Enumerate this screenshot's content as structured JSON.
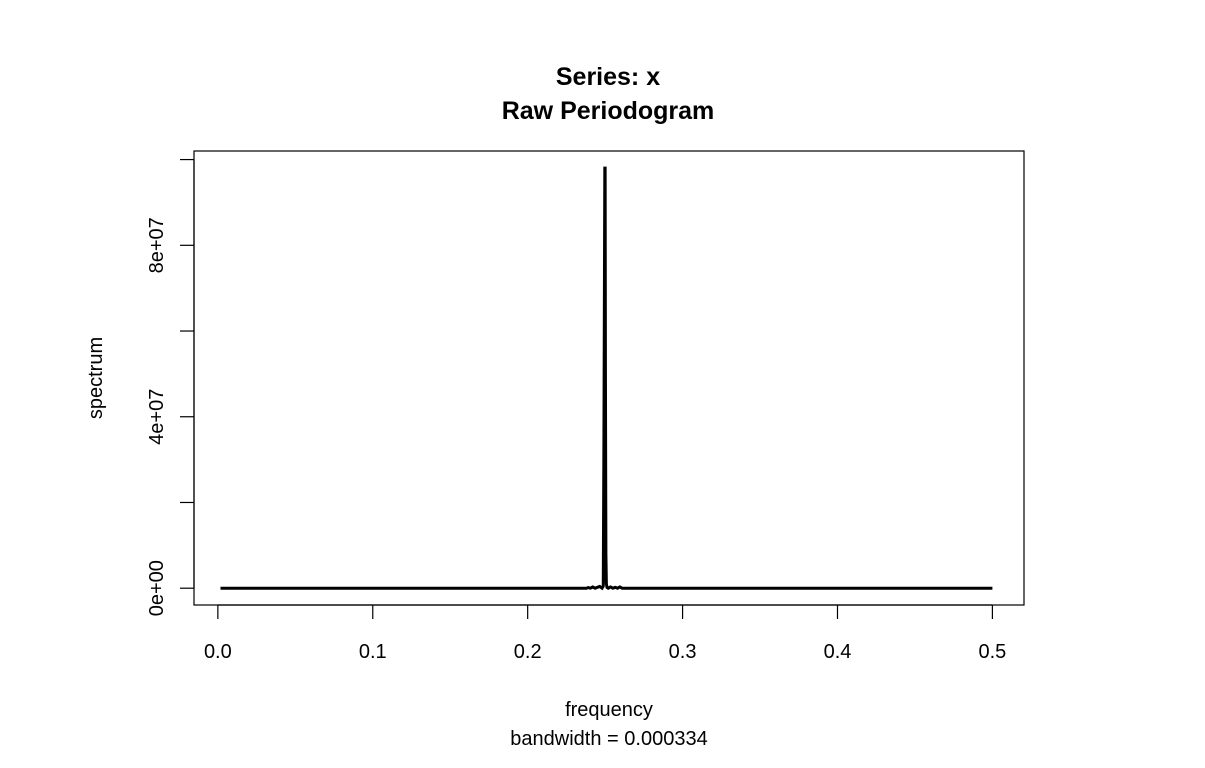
{
  "chart_data": {
    "type": "line",
    "title": "Series: x",
    "subtitle": "Raw Periodogram",
    "xlabel": "frequency",
    "xlabel_sub": "bandwidth = 0.000334",
    "ylabel": "spectrum",
    "xlim": [
      -0.0154,
      0.5204
    ],
    "ylim": [
      -3920000,
      102000000
    ],
    "x_ticks": [
      {
        "value": 0.0,
        "label": "0.0"
      },
      {
        "value": 0.1,
        "label": "0.1"
      },
      {
        "value": 0.2,
        "label": "0.2"
      },
      {
        "value": 0.3,
        "label": "0.3"
      },
      {
        "value": 0.4,
        "label": "0.4"
      },
      {
        "value": 0.5,
        "label": "0.5"
      }
    ],
    "y_ticks": [
      {
        "value": 0,
        "label": "0e+00"
      },
      {
        "value": 20000000,
        "label": ""
      },
      {
        "value": 40000000,
        "label": "4e+07"
      },
      {
        "value": 60000000,
        "label": ""
      },
      {
        "value": 80000000,
        "label": "8e+07"
      },
      {
        "value": 100000000,
        "label": ""
      }
    ],
    "grid": false,
    "series": [
      {
        "color": "#000000",
        "x": [
          0.0017,
          0.238,
          0.239,
          0.2405,
          0.242,
          0.2435,
          0.245,
          0.2465,
          0.248,
          0.2488,
          0.2492,
          0.2495,
          0.2498,
          0.25,
          0.2502,
          0.2505,
          0.2508,
          0.2512,
          0.252,
          0.2535,
          0.255,
          0.2565,
          0.258,
          0.2595,
          0.261,
          0.262,
          0.5
        ],
        "y": [
          0,
          0,
          150000,
          0,
          300000,
          0,
          200000,
          400000,
          0,
          500000,
          33000000,
          65000000,
          98000000,
          98000000,
          49000000,
          8000000,
          1000000,
          200000,
          0,
          300000,
          0,
          200000,
          0,
          300000,
          0,
          0,
          0
        ]
      }
    ]
  }
}
